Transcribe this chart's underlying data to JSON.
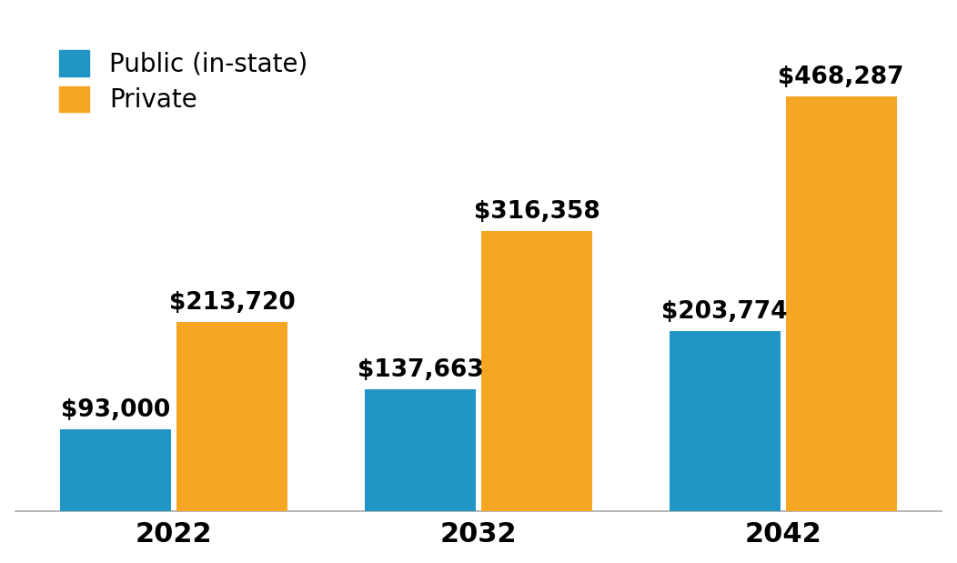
{
  "years": [
    "2022",
    "2032",
    "2042"
  ],
  "public_values": [
    93000,
    137663,
    203774
  ],
  "private_values": [
    213720,
    316358,
    468287
  ],
  "public_color": "#2196C4",
  "private_color": "#F5A623",
  "public_label": "Public (in-state)",
  "private_label": "Private",
  "bar_width": 0.42,
  "background_color": "#ffffff",
  "tick_fontsize": 22,
  "legend_fontsize": 20,
  "value_fontsize": 19,
  "ylim": [
    0,
    560000
  ]
}
